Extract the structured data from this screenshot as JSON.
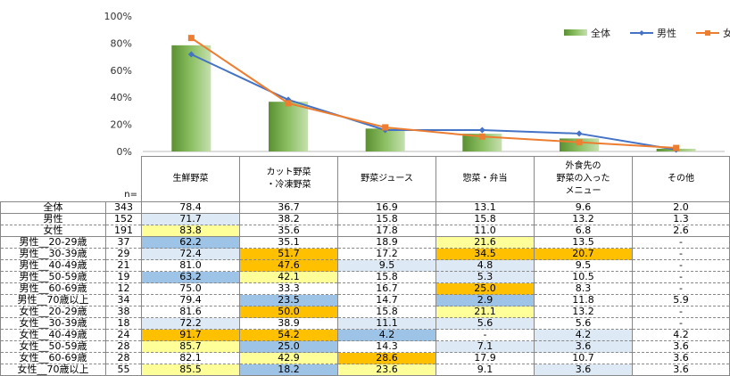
{
  "chart_data": {
    "type": "bar",
    "categories": [
      "生鮮野菜",
      "カット野菜\n・冷凍野菜",
      "野菜ジュース",
      "惣菜・弁当",
      "外食先の\n野菜の入った\nメニュー",
      "その他"
    ],
    "series": [
      {
        "name": "全体",
        "kind": "bar",
        "color": "#70ad47",
        "values": [
          78.4,
          36.7,
          16.9,
          13.1,
          9.6,
          2.0
        ]
      },
      {
        "name": "男性",
        "kind": "line",
        "color": "#4472c4",
        "values": [
          71.7,
          38.2,
          15.8,
          15.8,
          13.2,
          1.3
        ]
      },
      {
        "name": "女性",
        "kind": "line",
        "color": "#ed7d31",
        "values": [
          83.8,
          35.6,
          17.8,
          11.0,
          6.8,
          2.6
        ]
      }
    ],
    "ylim": [
      0,
      100
    ],
    "yticks": [
      "0%",
      "20%",
      "40%",
      "60%",
      "80%",
      "100%"
    ],
    "legend": "top-right"
  },
  "table": {
    "n_label": "n=",
    "headers": [
      "生鮮野菜",
      "カット野菜\n・冷凍野菜",
      "野菜ジュース",
      "惣菜・弁当",
      "外食先の\n野菜の入った\nメニュー",
      "その他"
    ],
    "highlight_colors": {
      "lb": "#dde9f5",
      "b": "#9dc3e6",
      "y": "#ffff99",
      "o": "#ffc000"
    },
    "rows": [
      {
        "label": "全体",
        "n": "343",
        "values": [
          "78.4",
          "36.7",
          "16.9",
          "13.1",
          "9.6",
          "2.0"
        ],
        "hl": [
          "",
          "",
          "",
          "",
          "",
          ""
        ]
      },
      {
        "label": "男性",
        "n": "152",
        "values": [
          "71.7",
          "38.2",
          "15.8",
          "15.8",
          "13.2",
          "1.3"
        ],
        "hl": [
          "lb",
          "",
          "",
          "",
          "",
          ""
        ]
      },
      {
        "label": "女性",
        "n": "191",
        "values": [
          "83.8",
          "35.6",
          "17.8",
          "11.0",
          "6.8",
          "2.6"
        ],
        "hl": [
          "y",
          "",
          "",
          "",
          "",
          ""
        ]
      },
      {
        "label": "男性__20-29歳",
        "n": "37",
        "values": [
          "62.2",
          "35.1",
          "18.9",
          "21.6",
          "13.5",
          "-"
        ],
        "hl": [
          "b",
          "",
          "",
          "y",
          "",
          ""
        ]
      },
      {
        "label": "男性__30-39歳",
        "n": "29",
        "values": [
          "72.4",
          "51.7",
          "17.2",
          "34.5",
          "20.7",
          "-"
        ],
        "hl": [
          "lb",
          "o",
          "",
          "o",
          "o",
          ""
        ]
      },
      {
        "label": "男性__40-49歳",
        "n": "21",
        "values": [
          "81.0",
          "47.6",
          "9.5",
          "4.8",
          "9.5",
          "-"
        ],
        "hl": [
          "",
          "o",
          "lb",
          "lb",
          "",
          ""
        ]
      },
      {
        "label": "男性__50-59歳",
        "n": "19",
        "values": [
          "63.2",
          "42.1",
          "15.8",
          "5.3",
          "10.5",
          "-"
        ],
        "hl": [
          "b",
          "y",
          "",
          "lb",
          "",
          ""
        ]
      },
      {
        "label": "男性__60-69歳",
        "n": "12",
        "values": [
          "75.0",
          "33.3",
          "16.7",
          "25.0",
          "8.3",
          "-"
        ],
        "hl": [
          "",
          "",
          "",
          "o",
          "",
          ""
        ]
      },
      {
        "label": "男性__70歳以上",
        "n": "34",
        "values": [
          "79.4",
          "23.5",
          "14.7",
          "2.9",
          "11.8",
          "5.9"
        ],
        "hl": [
          "",
          "b",
          "",
          "b",
          "",
          ""
        ]
      },
      {
        "label": "女性__20-29歳",
        "n": "38",
        "values": [
          "81.6",
          "50.0",
          "15.8",
          "21.1",
          "13.2",
          "-"
        ],
        "hl": [
          "",
          "o",
          "",
          "y",
          "",
          ""
        ]
      },
      {
        "label": "女性__30-39歳",
        "n": "18",
        "values": [
          "72.2",
          "38.9",
          "11.1",
          "5.6",
          "5.6",
          "-"
        ],
        "hl": [
          "lb",
          "",
          "lb",
          "lb",
          "",
          ""
        ]
      },
      {
        "label": "女性__40-49歳",
        "n": "24",
        "values": [
          "91.7",
          "54.2",
          "4.2",
          "-",
          "4.2",
          "4.2"
        ],
        "hl": [
          "o",
          "o",
          "b",
          "",
          "lb",
          ""
        ]
      },
      {
        "label": "女性__50-59歳",
        "n": "28",
        "values": [
          "85.7",
          "25.0",
          "14.3",
          "7.1",
          "3.6",
          "3.6"
        ],
        "hl": [
          "y",
          "b",
          "",
          "lb",
          "lb",
          ""
        ]
      },
      {
        "label": "女性__60-69歳",
        "n": "28",
        "values": [
          "82.1",
          "42.9",
          "28.6",
          "17.9",
          "10.7",
          "3.6"
        ],
        "hl": [
          "",
          "y",
          "o",
          "",
          "",
          ""
        ]
      },
      {
        "label": "女性__70歳以上",
        "n": "55",
        "values": [
          "85.5",
          "18.2",
          "23.6",
          "9.1",
          "3.6",
          "3.6"
        ],
        "hl": [
          "y",
          "b",
          "y",
          "",
          "lb",
          ""
        ]
      }
    ]
  }
}
